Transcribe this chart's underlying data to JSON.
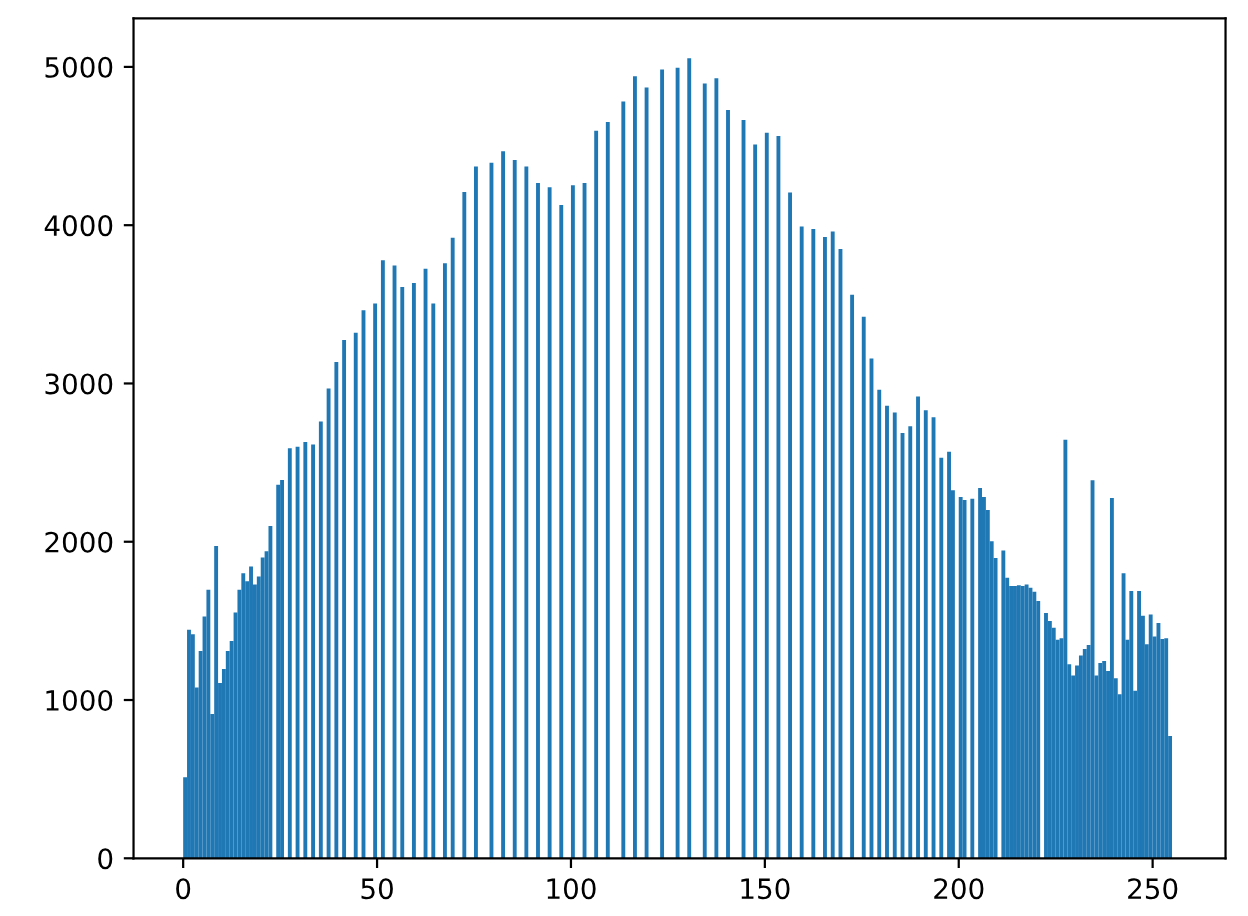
{
  "chart_data": {
    "type": "histogram",
    "color": "#1f77b4",
    "bins": [
      0,
      1,
      2,
      3,
      4,
      5,
      6,
      7,
      8,
      9,
      10,
      11,
      12,
      13,
      14,
      15,
      16,
      17,
      18,
      19,
      20,
      21,
      22,
      23,
      24,
      25,
      26,
      27,
      28,
      29,
      30,
      31,
      32,
      33,
      34,
      35,
      36,
      37,
      38,
      39,
      40,
      41,
      42,
      43,
      44,
      45,
      46,
      47,
      48,
      49,
      50,
      51,
      52,
      53,
      54,
      55,
      56,
      57,
      58,
      59,
      60,
      61,
      62,
      63,
      64,
      65,
      66,
      67,
      68,
      69,
      70,
      71,
      72,
      73,
      74,
      75,
      76,
      77,
      78,
      79,
      80,
      81,
      82,
      83,
      84,
      85,
      86,
      87,
      88,
      89,
      90,
      91,
      92,
      93,
      94,
      95,
      96,
      97,
      98,
      99,
      100,
      101,
      102,
      103,
      104,
      105,
      106,
      107,
      108,
      109,
      110,
      111,
      112,
      113,
      114,
      115,
      116,
      117,
      118,
      119,
      120,
      121,
      122,
      123,
      124,
      125,
      126,
      127,
      128,
      129,
      130,
      131,
      132,
      133,
      134,
      135,
      136,
      137,
      138,
      139,
      140,
      141,
      142,
      143,
      144,
      145,
      146,
      147,
      148,
      149,
      150,
      151,
      152,
      153,
      154,
      155,
      156,
      157,
      158,
      159,
      160,
      161,
      162,
      163,
      164,
      165,
      166,
      167,
      168,
      169,
      170,
      171,
      172,
      173,
      174,
      175,
      176,
      177,
      178,
      179,
      180,
      181,
      182,
      183,
      184,
      185,
      186,
      187,
      188,
      189,
      190,
      191,
      192,
      193,
      194,
      195,
      196,
      197,
      198,
      199,
      200,
      201,
      202,
      203,
      204,
      205,
      206,
      207,
      208,
      209,
      210,
      211,
      212,
      213,
      214,
      215,
      216,
      217,
      218,
      219,
      220,
      221,
      222,
      223,
      224,
      225,
      226,
      227,
      228,
      229,
      230,
      231,
      232,
      233,
      234,
      235,
      236,
      237,
      238,
      239,
      240,
      241,
      242,
      243,
      244,
      245,
      246,
      247,
      248,
      249,
      250,
      251,
      252,
      253,
      254,
      255,
      256
    ],
    "values": [
      512,
      1444,
      1415,
      1079,
      1310,
      1528,
      1696,
      911,
      1973,
      1108,
      1196,
      1310,
      1373,
      1553,
      1696,
      1801,
      1750,
      1843,
      1730,
      1780,
      1900,
      1940,
      2100,
      0,
      2360,
      2390,
      0,
      2590,
      0,
      2600,
      0,
      2630,
      0,
      2615,
      0,
      2760,
      0,
      2968,
      0,
      3136,
      0,
      3275,
      0,
      0,
      3321,
      0,
      3463,
      0,
      0,
      3505,
      0,
      3778,
      0,
      0,
      3745,
      0,
      3610,
      0,
      0,
      3635,
      0,
      0,
      3724,
      0,
      3505,
      0,
      0,
      3760,
      0,
      3921,
      0,
      0,
      4210,
      0,
      0,
      4370,
      0,
      0,
      0,
      4395,
      0,
      0,
      4467,
      0,
      0,
      4412,
      0,
      0,
      4370,
      0,
      0,
      4266,
      0,
      0,
      4240,
      0,
      0,
      4127,
      0,
      0,
      4253,
      0,
      0,
      4266,
      0,
      0,
      4597,
      0,
      0,
      4652,
      0,
      0,
      0,
      4782,
      0,
      0,
      4941,
      0,
      0,
      4870,
      0,
      0,
      0,
      4983,
      0,
      0,
      0,
      4995,
      0,
      0,
      5054,
      0,
      0,
      0,
      4895,
      0,
      0,
      4929,
      0,
      0,
      4727,
      0,
      0,
      0,
      4664,
      0,
      0,
      4509,
      0,
      0,
      4584,
      0,
      0,
      4563,
      0,
      0,
      4207,
      0,
      0,
      3992,
      0,
      0,
      3976,
      0,
      0,
      3926,
      0,
      3960,
      0,
      3850,
      0,
      0,
      3560,
      0,
      0,
      3422,
      0,
      3157,
      0,
      2960,
      0,
      2859,
      0,
      2817,
      0,
      2687,
      0,
      2729,
      0,
      2918,
      0,
      2830,
      0,
      2787,
      0,
      2531,
      0,
      2569,
      2326,
      0,
      2283,
      2263,
      0,
      2271,
      0,
      2339,
      2283,
      2200,
      2003,
      1898,
      0,
      1944,
      1772,
      1721,
      1720,
      1725,
      1720,
      1730,
      1709,
      1684,
      1625,
      0,
      1549,
      1499,
      1457,
      1381,
      1390,
      2645,
      1226,
      1155,
      1218,
      1281,
      1322,
      1348,
      2389,
      1155,
      1234,
      1247,
      1184,
      2276,
      1137,
      1037,
      1801,
      1381,
      1688,
      1058,
      1688,
      1532,
      1352,
      1541,
      1402,
      1486,
      1385,
      1390,
      772,
      0
    ],
    "xlim": [
      -12.8,
      268.8
    ],
    "ylim": [
      0,
      5307
    ],
    "xticks": [
      0,
      50,
      100,
      150,
      200,
      250
    ],
    "yticks": [
      0,
      1000,
      2000,
      3000,
      4000,
      5000
    ],
    "grid": false,
    "legend": false
  }
}
